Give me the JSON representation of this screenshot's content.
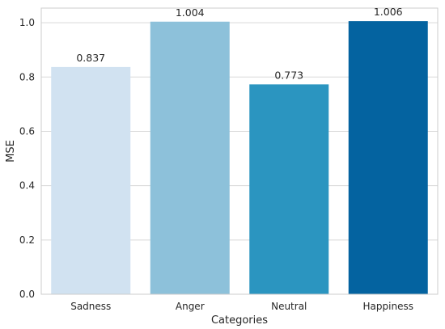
{
  "chart_data": {
    "type": "bar",
    "categories": [
      "Sadness",
      "Anger",
      "Neutral",
      "Happiness"
    ],
    "values": [
      0.837,
      1.004,
      0.773,
      1.006
    ],
    "value_labels": [
      "0.837",
      "1.004",
      "0.773",
      "1.006"
    ],
    "colors": [
      "#d1e2f1",
      "#8dc1da",
      "#2b95c0",
      "#0463a0"
    ],
    "xlabel": "Categories",
    "ylabel": "MSE",
    "ylim": [
      0,
      1.054
    ],
    "yticks": [
      0.0,
      0.2,
      0.4,
      0.6,
      0.8,
      1.0
    ],
    "ytick_labels": [
      "0.0",
      "0.2",
      "0.4",
      "0.6",
      "0.8",
      "1.0"
    ],
    "grid": true,
    "grid_color": "#d9d9d9",
    "frame_color": "#cccccc"
  }
}
